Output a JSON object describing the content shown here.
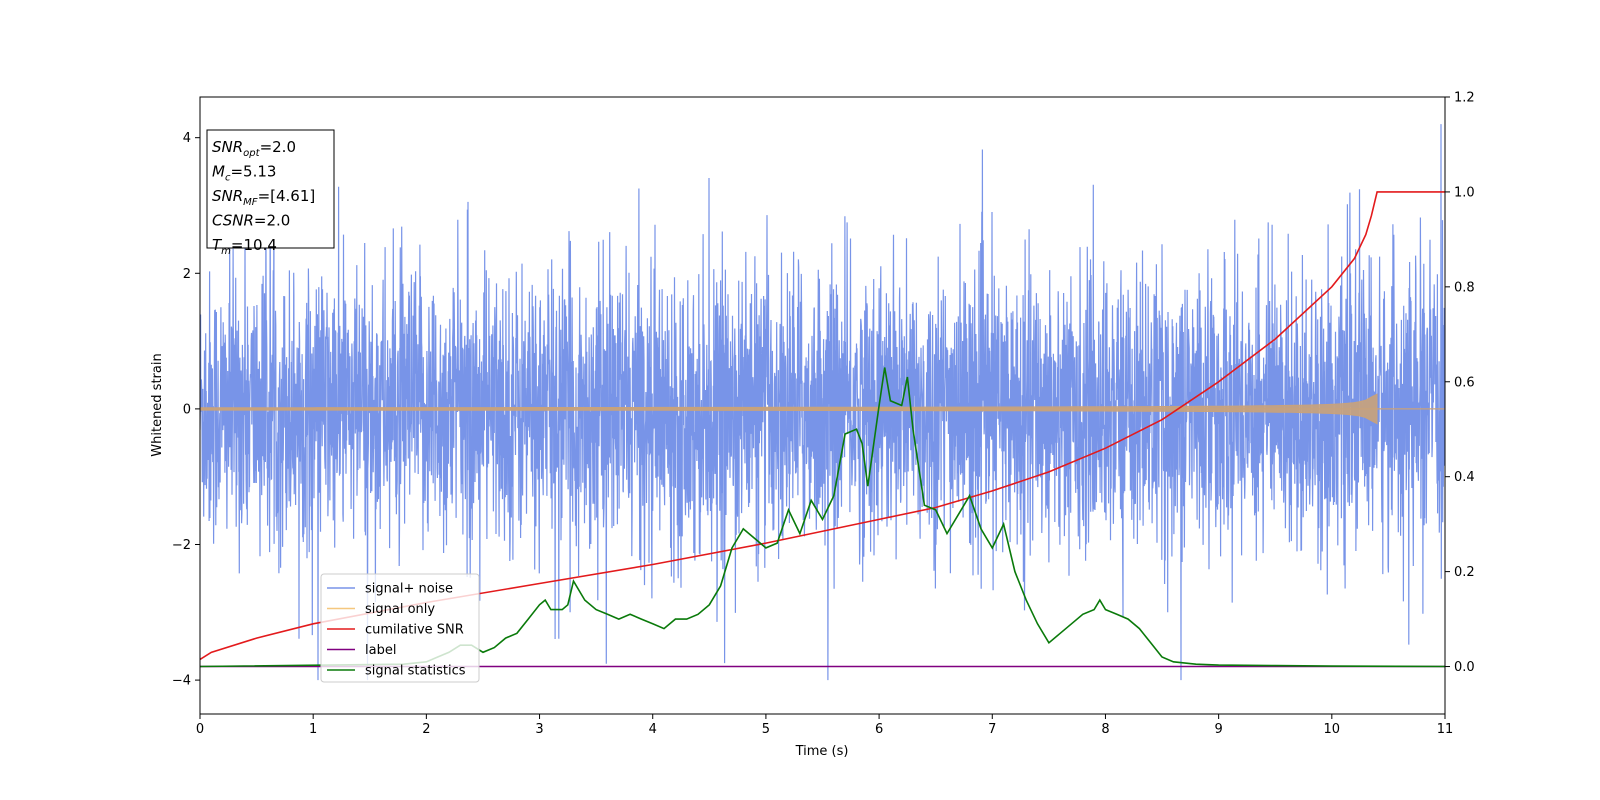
{
  "chart_data": {
    "type": "line",
    "xlabel": "Time (s)",
    "ylabel": "Whitened strain",
    "xlim": [
      0,
      11
    ],
    "ylim_left": [
      -4.5,
      4.6
    ],
    "ylim_right": [
      -0.1,
      1.2
    ],
    "x_ticks": [
      "0",
      "1",
      "2",
      "3",
      "4",
      "5",
      "6",
      "7",
      "8",
      "9",
      "10",
      "11"
    ],
    "y_left_ticks": [
      "−4",
      "−2",
      "0",
      "2",
      "4"
    ],
    "y_right_ticks": [
      "0.0",
      "0.2",
      "0.4",
      "0.6",
      "0.8",
      "1.0",
      "1.2"
    ],
    "info_box": [
      {
        "base": "SNR",
        "sub": "opt",
        "value": "=2.0"
      },
      {
        "base": "M",
        "sub": "c",
        "value": "=5.13"
      },
      {
        "base": "SNR",
        "sub": "MF",
        "value": "=[4.61]"
      },
      {
        "base": "CSNR",
        "sub": "",
        "value": "=2.0"
      },
      {
        "base": "T",
        "sub": "m",
        "value": "=10.4"
      }
    ],
    "legend": {
      "placement": "lower-left",
      "entries": [
        {
          "label": "signal+ noise",
          "color": "#7894e8"
        },
        {
          "label": "signal only",
          "color": "#f5c77e"
        },
        {
          "label": "cumilative SNR",
          "color": "#e31a1c"
        },
        {
          "label": "label",
          "color": "#800080"
        },
        {
          "label": "signal statistics",
          "color": "#0a7a0a"
        }
      ]
    },
    "series": [
      {
        "key": "noise",
        "axis": "left",
        "color": "#7894e8",
        "description_range": [
          -4.0,
          4.2
        ],
        "core_amplitude": 1.5,
        "x_range": [
          0,
          11
        ]
      },
      {
        "key": "signal",
        "axis": "left",
        "color": "#c9a27a",
        "x_range": [
          0,
          10.4
        ],
        "end_amplitude": 0.22
      },
      {
        "key": "cumulative_snr",
        "axis": "right",
        "color": "#e31a1c",
        "x": [
          0,
          0.1,
          0.5,
          1,
          2,
          3,
          4,
          5,
          6,
          6.5,
          7,
          7.5,
          8,
          8.5,
          9,
          9.5,
          10,
          10.2,
          10.3,
          10.35,
          10.4,
          11
        ],
        "y": [
          0.015,
          0.03,
          0.06,
          0.09,
          0.135,
          0.175,
          0.215,
          0.26,
          0.31,
          0.335,
          0.37,
          0.41,
          0.46,
          0.52,
          0.6,
          0.69,
          0.8,
          0.86,
          0.91,
          0.95,
          1.0,
          1.0
        ]
      },
      {
        "key": "label",
        "axis": "right",
        "color": "#800080",
        "x": [
          0,
          11
        ],
        "y": [
          0,
          0
        ]
      },
      {
        "key": "signal_statistics",
        "axis": "right",
        "color": "#0a7a0a",
        "x": [
          0,
          1.8,
          2.0,
          2.1,
          2.2,
          2.3,
          2.4,
          2.5,
          2.6,
          2.7,
          2.8,
          2.9,
          3.0,
          3.05,
          3.1,
          3.2,
          3.25,
          3.3,
          3.4,
          3.5,
          3.6,
          3.7,
          3.8,
          3.9,
          4.0,
          4.1,
          4.2,
          4.3,
          4.4,
          4.5,
          4.6,
          4.7,
          4.8,
          4.9,
          5.0,
          5.1,
          5.2,
          5.3,
          5.4,
          5.5,
          5.6,
          5.7,
          5.8,
          5.85,
          5.9,
          6.0,
          6.05,
          6.1,
          6.2,
          6.25,
          6.3,
          6.4,
          6.5,
          6.6,
          6.7,
          6.8,
          6.9,
          7.0,
          7.1,
          7.2,
          7.3,
          7.4,
          7.5,
          7.6,
          7.7,
          7.8,
          7.9,
          7.95,
          8.0,
          8.1,
          8.2,
          8.3,
          8.4,
          8.5,
          8.6,
          8.8,
          9.0,
          9.5,
          10.0,
          11.0
        ],
        "y": [
          0.0,
          0.005,
          0.01,
          0.02,
          0.03,
          0.045,
          0.045,
          0.03,
          0.04,
          0.06,
          0.07,
          0.1,
          0.13,
          0.14,
          0.12,
          0.12,
          0.13,
          0.18,
          0.14,
          0.12,
          0.11,
          0.1,
          0.11,
          0.1,
          0.09,
          0.08,
          0.1,
          0.1,
          0.11,
          0.13,
          0.17,
          0.25,
          0.29,
          0.27,
          0.25,
          0.26,
          0.33,
          0.28,
          0.35,
          0.31,
          0.36,
          0.49,
          0.5,
          0.47,
          0.38,
          0.55,
          0.63,
          0.56,
          0.55,
          0.61,
          0.5,
          0.34,
          0.33,
          0.28,
          0.32,
          0.36,
          0.29,
          0.25,
          0.3,
          0.2,
          0.14,
          0.09,
          0.05,
          0.07,
          0.09,
          0.11,
          0.12,
          0.14,
          0.12,
          0.11,
          0.1,
          0.08,
          0.05,
          0.02,
          0.01,
          0.005,
          0.003,
          0.002,
          0.001,
          0.0
        ]
      }
    ]
  }
}
